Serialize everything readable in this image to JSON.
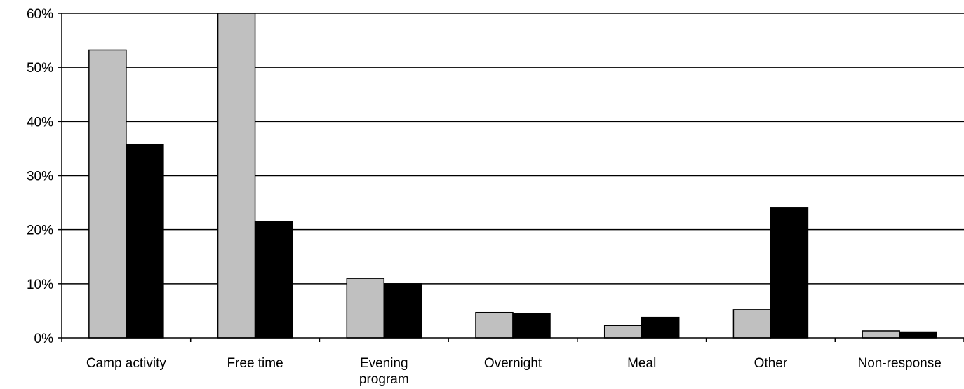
{
  "chart_data": {
    "type": "bar",
    "title": "",
    "xlabel": "",
    "ylabel": "",
    "ylim": [
      0,
      60
    ],
    "y_ticks": [
      "0%",
      "10%",
      "20%",
      "30%",
      "40%",
      "50%",
      "60%"
    ],
    "grid": true,
    "legend": "none",
    "categories": [
      [
        "Camp activity"
      ],
      [
        "Free time"
      ],
      [
        "Evening",
        "program"
      ],
      [
        "Overnight"
      ],
      [
        "Meal"
      ],
      [
        "Other"
      ],
      [
        "Non-response"
      ]
    ],
    "series": [
      {
        "color": "#c0c0c0",
        "values": [
          53.2,
          60.0,
          11.0,
          4.7,
          2.3,
          5.2,
          1.3
        ]
      },
      {
        "color": "#000000",
        "values": [
          35.8,
          21.5,
          10.0,
          4.5,
          3.8,
          24.0,
          1.1
        ]
      }
    ]
  }
}
